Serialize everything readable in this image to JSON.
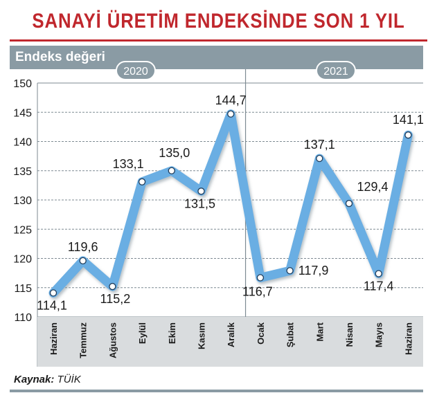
{
  "title": "SANAYİ ÜRETİM ENDEKSİNDE SON 1 YIL",
  "banner_label": "Endeks değeri",
  "source_label": "Kaynak:",
  "source_value": "TÜİK",
  "colors": {
    "title": "#c0272d",
    "banner": "#8a9ba4",
    "line": "#6aaee3",
    "axis_band": "#d9dcde",
    "year_pill": "#8a9ba4"
  },
  "chart_data": {
    "type": "line",
    "title": "SANAYİ ÜRETİM ENDEKSİNDE SON 1 YIL",
    "ylabel": "Endeks değeri",
    "xlabel": "",
    "ylim": [
      110,
      150
    ],
    "yticks": [
      "110",
      "115",
      "120",
      "125",
      "130",
      "135",
      "140",
      "145",
      "150"
    ],
    "grid": true,
    "year_groups": [
      {
        "label": "2020",
        "start": 0,
        "end": 6
      },
      {
        "label": "2021",
        "start": 7,
        "end": 12
      }
    ],
    "categories": [
      "Haziran",
      "Temmuz",
      "Ağustos",
      "Eylül",
      "Ekim",
      "Kasım",
      "Aralık",
      "Ocak",
      "Şubat",
      "Mart",
      "Nisan",
      "Mayıs",
      "Haziran"
    ],
    "values": [
      114.1,
      119.6,
      115.2,
      133.1,
      135.0,
      131.5,
      144.7,
      116.7,
      117.9,
      137.1,
      129.4,
      117.4,
      141.1
    ],
    "value_labels": [
      "114,1",
      "119,6",
      "115,2",
      "133,1",
      "135,0",
      "131,5",
      "144,7",
      "116,7",
      "117,9",
      "137,1",
      "129,4",
      "117,4",
      "141,1"
    ]
  }
}
